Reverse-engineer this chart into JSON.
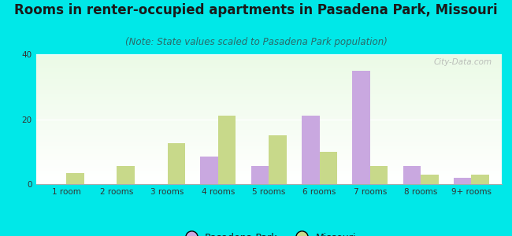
{
  "title": "Rooms in renter-occupied apartments in Pasadena Park, Missouri",
  "subtitle": "(Note: State values scaled to Pasadena Park population)",
  "categories": [
    "1 room",
    "2 rooms",
    "3 rooms",
    "4 rooms",
    "5 rooms",
    "6 rooms",
    "7 rooms",
    "8 rooms",
    "9+ rooms"
  ],
  "pasadena_values": [
    0,
    0,
    0,
    8.5,
    5.5,
    21,
    35,
    5.5,
    2
  ],
  "missouri_values": [
    3.5,
    5.5,
    12.5,
    21,
    15,
    10,
    5.5,
    3,
    3
  ],
  "pasadena_color": "#c9a8e0",
  "missouri_color": "#c8d98a",
  "bg_color": "#00e8e8",
  "ylim": [
    0,
    40
  ],
  "yticks": [
    0,
    20,
    40
  ],
  "legend_pasadena": "Pasadena Park",
  "legend_missouri": "Missouri",
  "bar_width": 0.35,
  "title_fontsize": 12,
  "subtitle_fontsize": 8.5,
  "tick_fontsize": 7.5,
  "legend_fontsize": 9,
  "watermark": "City-Data.com"
}
